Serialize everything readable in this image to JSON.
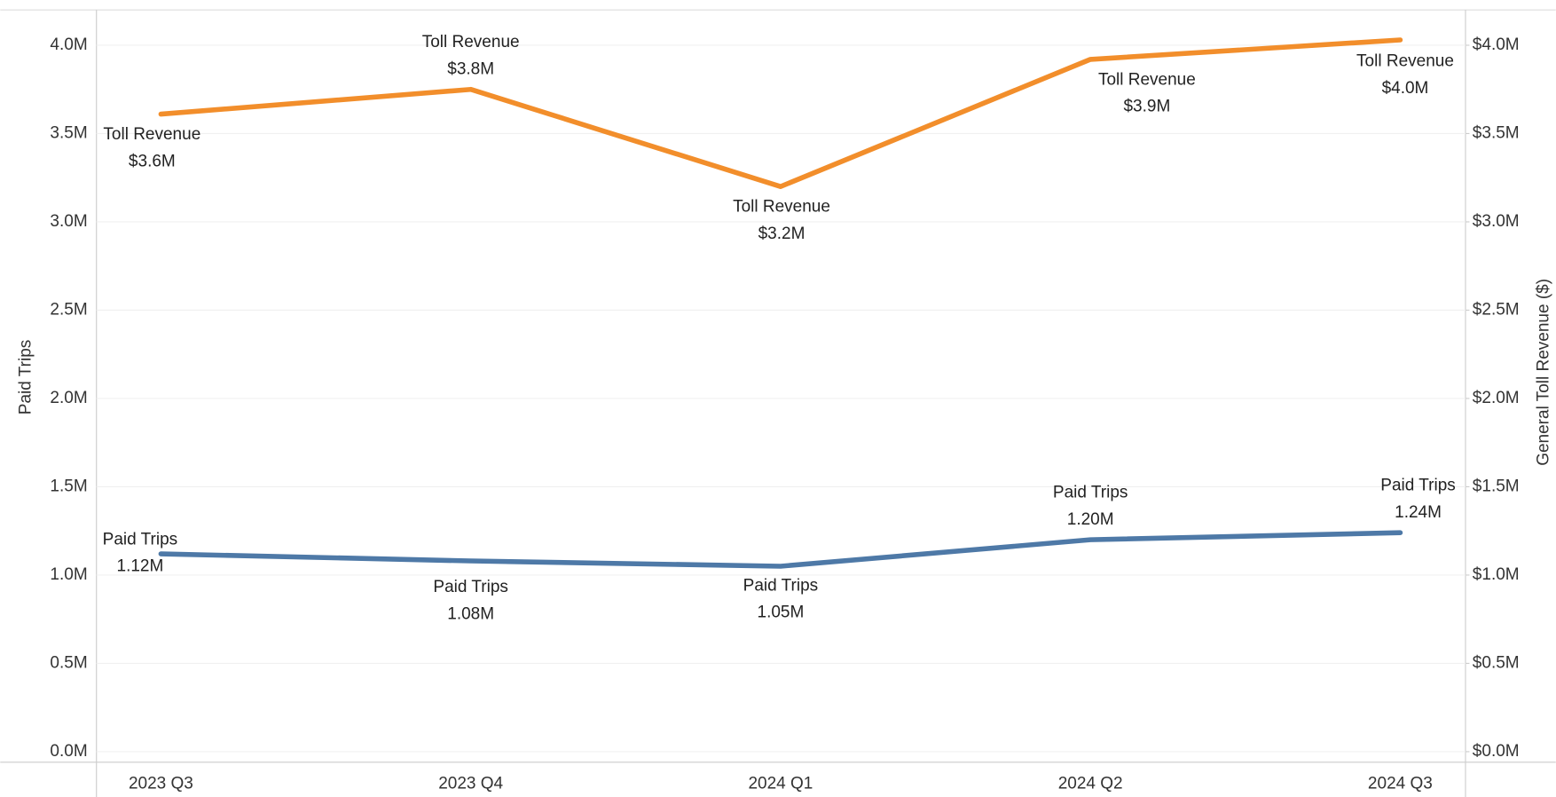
{
  "chart_data": {
    "type": "line",
    "categories": [
      "2023 Q3",
      "2023 Q4",
      "2024 Q1",
      "2024 Q2",
      "2024 Q3"
    ],
    "ylabel": "Paid Trips",
    "y2label": "General Toll Revenue ($)",
    "ylim": [
      -60000,
      4200000
    ],
    "yticks": [
      {
        "value": 0,
        "label": "0.0M"
      },
      {
        "value": 500000,
        "label": "0.5M"
      },
      {
        "value": 1000000,
        "label": "1.0M"
      },
      {
        "value": 1500000,
        "label": "1.5M"
      },
      {
        "value": 2000000,
        "label": "2.0M"
      },
      {
        "value": 2500000,
        "label": "2.5M"
      },
      {
        "value": 3000000,
        "label": "3.0M"
      },
      {
        "value": 3500000,
        "label": "3.5M"
      },
      {
        "value": 4000000,
        "label": "4.0M"
      }
    ],
    "y2lim": [
      -60000,
      4200000
    ],
    "y2ticks": [
      {
        "value": 0,
        "label": "$0.0M"
      },
      {
        "value": 500000,
        "label": "$0.5M"
      },
      {
        "value": 1000000,
        "label": "$1.0M"
      },
      {
        "value": 1500000,
        "label": "$1.5M"
      },
      {
        "value": 2000000,
        "label": "$2.0M"
      },
      {
        "value": 2500000,
        "label": "$2.5M"
      },
      {
        "value": 3000000,
        "label": "$3.0M"
      },
      {
        "value": 3500000,
        "label": "$3.5M"
      },
      {
        "value": 4000000,
        "label": "$4.0M"
      }
    ],
    "grid": true,
    "series": [
      {
        "name": "Toll Revenue",
        "color": "#f28e2b",
        "axis": "y2",
        "values": [
          3610000,
          3750000,
          3200000,
          3920000,
          4030000
        ],
        "value_labels": [
          "$3.6M",
          "$3.8M",
          "$3.2M",
          "$3.9M",
          "$4.0M"
        ]
      },
      {
        "name": "Paid Trips",
        "color": "#4e79a7",
        "values": [
          1120000,
          1080000,
          1050000,
          1200000,
          1240000
        ],
        "value_labels": [
          "1.12M",
          "1.08M",
          "1.05M",
          "1.20M",
          "1.24M"
        ]
      }
    ]
  }
}
